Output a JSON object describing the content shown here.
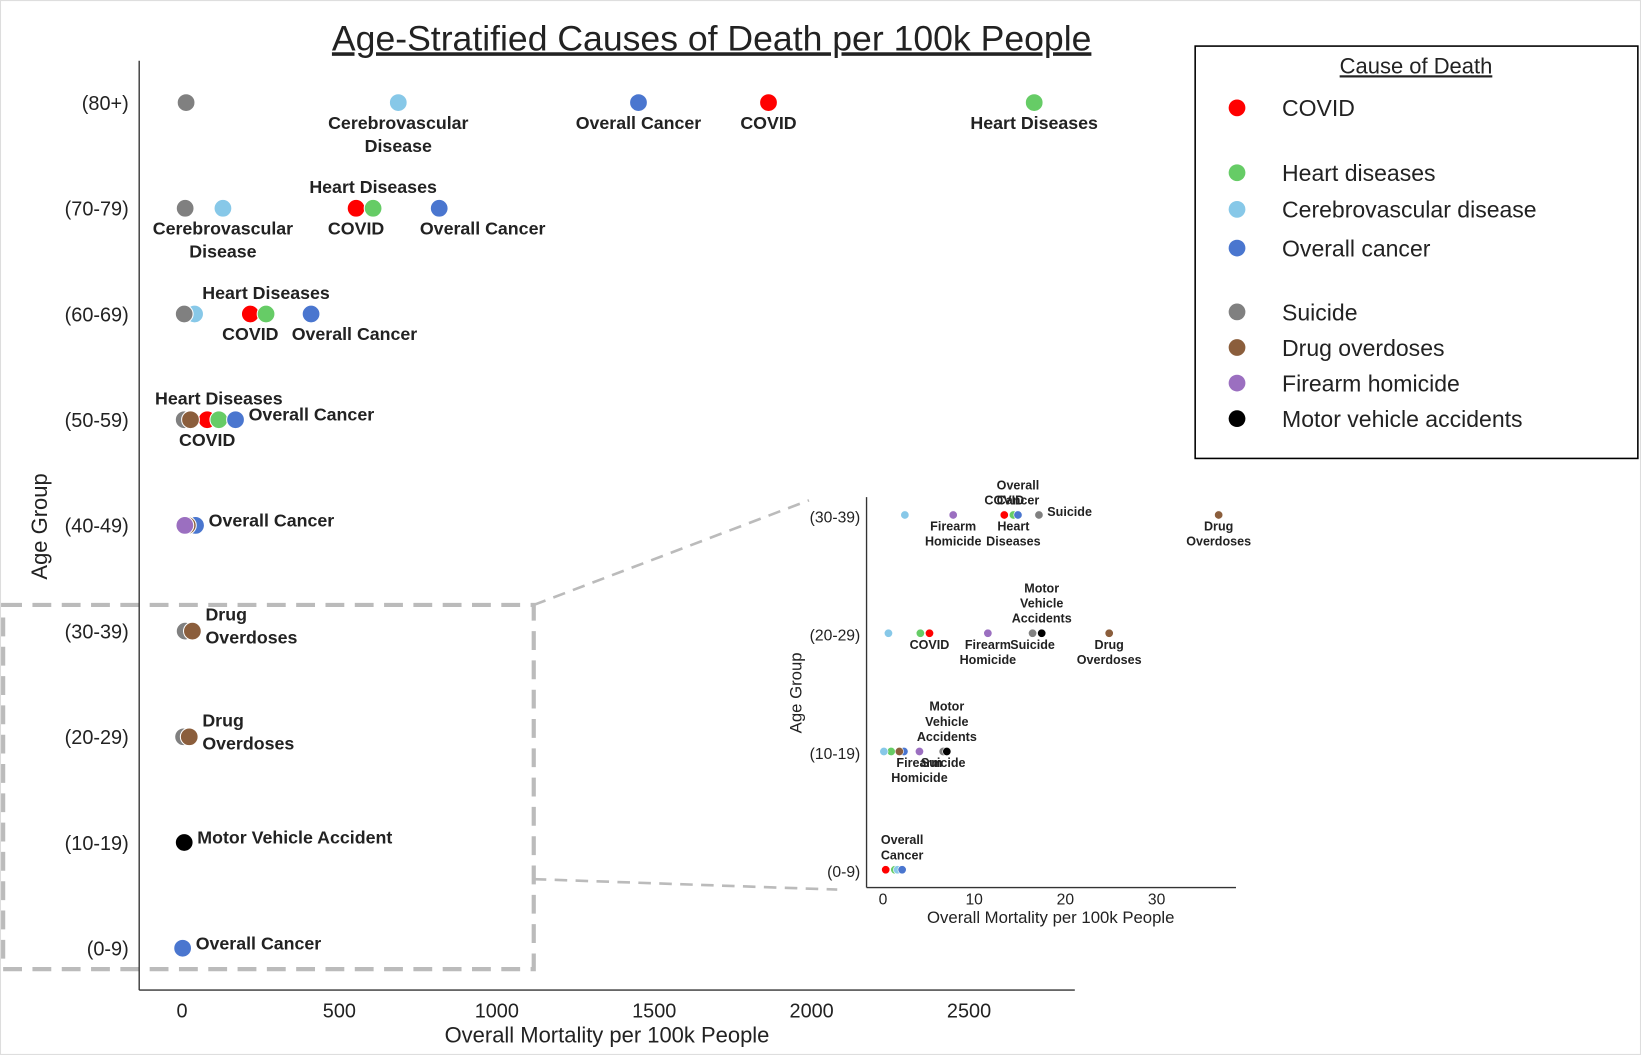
{
  "chart_data": [
    {
      "type": "scatter",
      "title": "Age-Stratified Causes of Death per 100k People",
      "x_label": "Overall Mortality per 100k People",
      "y_label": "Age Group",
      "legend_title": "Cause of Death",
      "legend": "upper right",
      "categories": [
        "(0-9)",
        "(10-19)",
        "(20-29)",
        "(30-39)",
        "(40-49)",
        "(50-59)",
        "(60-69)",
        "(70-79)",
        "(80+)"
      ],
      "xlim": [
        -136,
        2836
      ],
      "xticks": [
        0,
        500,
        1000,
        1500,
        2000,
        2500
      ],
      "grid": false,
      "series": [
        {
          "name": "COVID",
          "color": "#ff0000",
          "values": [
            null,
            null,
            null,
            null,
            null,
            80,
            217,
            553,
            1863
          ],
          "labels": [
            null,
            null,
            null,
            null,
            null,
            [
              "COVID"
            ],
            [
              "COVID"
            ],
            [
              "COVID"
            ],
            [
              "COVID"
            ]
          ],
          "label_positions": [
            null,
            null,
            null,
            null,
            null,
            "below",
            "below",
            "below",
            "below"
          ]
        },
        {
          "name": "Heart diseases",
          "color": "#66cc66",
          "values": [
            null,
            null,
            null,
            null,
            null,
            117,
            267,
            607,
            2707
          ],
          "labels": [
            null,
            null,
            null,
            null,
            null,
            [
              "Heart Diseases"
            ],
            [
              "Heart Diseases"
            ],
            [
              "Heart Diseases"
            ],
            [
              "Heart Diseases"
            ]
          ],
          "label_positions": [
            null,
            null,
            null,
            null,
            null,
            "above",
            "above",
            "above",
            "below"
          ]
        },
        {
          "name": "Cerebrovascular disease",
          "color": "#87c8e8",
          "values": [
            null,
            null,
            null,
            null,
            null,
            null,
            40,
            130,
            687
          ],
          "labels": [
            null,
            null,
            null,
            null,
            null,
            null,
            null,
            [
              "Cerebrovascular",
              "Disease"
            ],
            [
              "Cerebrovascular",
              "Disease"
            ]
          ],
          "label_positions": [
            null,
            null,
            null,
            null,
            null,
            null,
            null,
            "below",
            "below"
          ]
        },
        {
          "name": "Overall cancer",
          "color": "#4a76cf",
          "values": [
            2,
            null,
            null,
            null,
            43,
            170,
            410,
            817,
            1450
          ],
          "labels": [
            [
              "Overall Cancer"
            ],
            null,
            null,
            null,
            [
              "Overall Cancer"
            ],
            [
              "Overall Cancer"
            ],
            [
              "Overall Cancer"
            ],
            [
              "Overall Cancer"
            ],
            [
              "Overall Cancer"
            ]
          ],
          "label_positions": [
            "right",
            null,
            null,
            null,
            "right",
            "right",
            "below-right",
            "below-right",
            "below"
          ]
        },
        {
          "name": "Suicide",
          "color": "#808080",
          "values": [
            null,
            null,
            5,
            10,
            13,
            7,
            7,
            10,
            13
          ],
          "labels": [
            null,
            null,
            null,
            null,
            null,
            null,
            null,
            null,
            null
          ],
          "label_positions": [
            null,
            null,
            null,
            null,
            null,
            null,
            null,
            null,
            null
          ]
        },
        {
          "name": "Drug overdoses",
          "color": "#8b5e3c",
          "values": [
            null,
            null,
            23,
            33,
            17,
            27,
            null,
            null,
            null
          ],
          "labels": [
            null,
            null,
            [
              "Drug",
              "Overdoses"
            ],
            [
              "Drug",
              "Overdoses"
            ],
            null,
            null,
            null,
            null,
            null
          ],
          "label_positions": [
            null,
            null,
            "right",
            "right",
            null,
            null,
            null,
            null,
            null
          ]
        },
        {
          "name": "Firearm homicide",
          "color": "#9b6fc0",
          "values": [
            null,
            null,
            null,
            null,
            9,
            null,
            null,
            null,
            null
          ],
          "labels": [
            null,
            null,
            null,
            null,
            null,
            null,
            null,
            null,
            null
          ],
          "label_positions": [
            null,
            null,
            null,
            null,
            null,
            null,
            null,
            null,
            null
          ]
        },
        {
          "name": "Motor vehicle accidents",
          "color": "#000000",
          "values": [
            null,
            7,
            null,
            null,
            null,
            null,
            null,
            null,
            null
          ],
          "labels": [
            null,
            [
              "Motor Vehicle Accident"
            ],
            null,
            null,
            null,
            null,
            null,
            null,
            null
          ],
          "label_positions": [
            null,
            "right",
            null,
            null,
            null,
            null,
            null,
            null,
            null
          ]
        }
      ]
    },
    {
      "type": "scatter",
      "x_label": "Overall Mortality per 100k People",
      "y_label": "Age Group",
      "categories": [
        "(0-9)",
        "(10-19)",
        "(20-29)",
        "(30-39)"
      ],
      "xlim": [
        -1.8,
        38.7
      ],
      "xticks": [
        0,
        10,
        20,
        30
      ],
      "grid": false,
      "series": [
        {
          "name": "COVID",
          "color": "#ff0000",
          "values": [
            0.3,
            null,
            5.1,
            13.3
          ],
          "labels": [
            null,
            null,
            [
              "COVID"
            ],
            [
              "COVID"
            ]
          ],
          "label_positions": [
            null,
            null,
            "below",
            "above"
          ]
        },
        {
          "name": "Heart diseases",
          "color": "#66cc66",
          "values": [
            1.3,
            0.9,
            4.1,
            14.3
          ],
          "labels": [
            null,
            null,
            null,
            [
              "Heart",
              "Diseases"
            ]
          ],
          "label_positions": [
            null,
            null,
            null,
            "below"
          ]
        },
        {
          "name": "Cerebrovascular disease",
          "color": "#87c8e8",
          "values": [
            1.6,
            0.1,
            0.6,
            2.4
          ],
          "labels": [
            null,
            null,
            null,
            null
          ],
          "label_positions": [
            null,
            null,
            null,
            null
          ]
        },
        {
          "name": "Overall cancer",
          "color": "#4a76cf",
          "values": [
            2.1,
            2.3,
            null,
            14.8
          ],
          "labels": [
            [
              "Overall",
              "Cancer"
            ],
            null,
            null,
            [
              "Overall",
              "Cancer"
            ]
          ],
          "label_positions": [
            "above",
            null,
            null,
            "above"
          ]
        },
        {
          "name": "Suicide",
          "color": "#808080",
          "values": [
            null,
            6.6,
            16.4,
            17.1
          ],
          "labels": [
            null,
            [
              "Suicide"
            ],
            [
              "Suicide"
            ],
            [
              "Suicide"
            ]
          ],
          "label_positions": [
            null,
            "below",
            "below",
            "right"
          ]
        },
        {
          "name": "Drug overdoses",
          "color": "#8b5e3c",
          "values": [
            null,
            1.8,
            24.8,
            36.8
          ],
          "labels": [
            null,
            null,
            [
              "Drug",
              "Overdoses"
            ],
            [
              "Drug",
              "Overdoses"
            ]
          ],
          "label_positions": [
            null,
            null,
            "below",
            "below"
          ]
        },
        {
          "name": "Firearm homicide",
          "color": "#9b6fc0",
          "values": [
            null,
            4.0,
            11.5,
            7.7
          ],
          "labels": [
            null,
            [
              "Firearm",
              "Homicide"
            ],
            [
              "Firearm",
              "Homicide"
            ],
            [
              "Firearm",
              "Homicide"
            ]
          ],
          "label_positions": [
            null,
            "below",
            "below",
            "below"
          ]
        },
        {
          "name": "Motor vehicle accidents",
          "color": "#000000",
          "values": [
            null,
            7.0,
            17.4,
            null
          ],
          "labels": [
            null,
            [
              "Motor",
              "Vehicle",
              "Accidents"
            ],
            [
              "Motor",
              "Vehicle",
              "Accidents"
            ],
            null
          ],
          "label_positions": [
            null,
            "above",
            "above",
            null
          ]
        }
      ]
    }
  ]
}
